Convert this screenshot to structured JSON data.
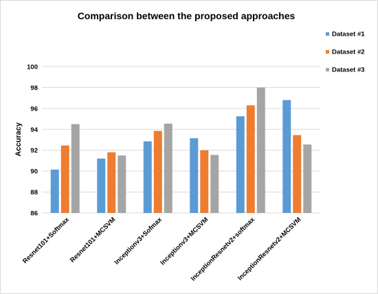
{
  "chart_data": {
    "type": "bar",
    "title": "Comparison between the proposed approaches",
    "xlabel": "",
    "ylabel": "Accuracy",
    "ylim": [
      86,
      100
    ],
    "yticks": [
      86,
      88,
      90,
      92,
      94,
      96,
      98,
      100
    ],
    "grid": true,
    "legend_position": "right",
    "categories": [
      "Resnet101+Softmax",
      "Resnet101+MCSVM",
      "Inceptionv3+Sofmax",
      "Inceptionv3+MCSVM",
      "InceptionResnetv2+softmax",
      "InceptionResnetv2+MCSVM"
    ],
    "series": [
      {
        "name": "Dataset #1",
        "color": "#5b9bd5",
        "values": [
          90.15,
          91.2,
          92.85,
          93.15,
          95.25,
          96.8
        ]
      },
      {
        "name": "Dataset #2",
        "color": "#ed7d31",
        "values": [
          92.45,
          91.8,
          93.85,
          92.0,
          96.3,
          93.45
        ]
      },
      {
        "name": "Dataset #3",
        "color": "#a5a5a5",
        "values": [
          94.5,
          91.5,
          94.55,
          91.55,
          98.0,
          92.55
        ]
      }
    ]
  }
}
